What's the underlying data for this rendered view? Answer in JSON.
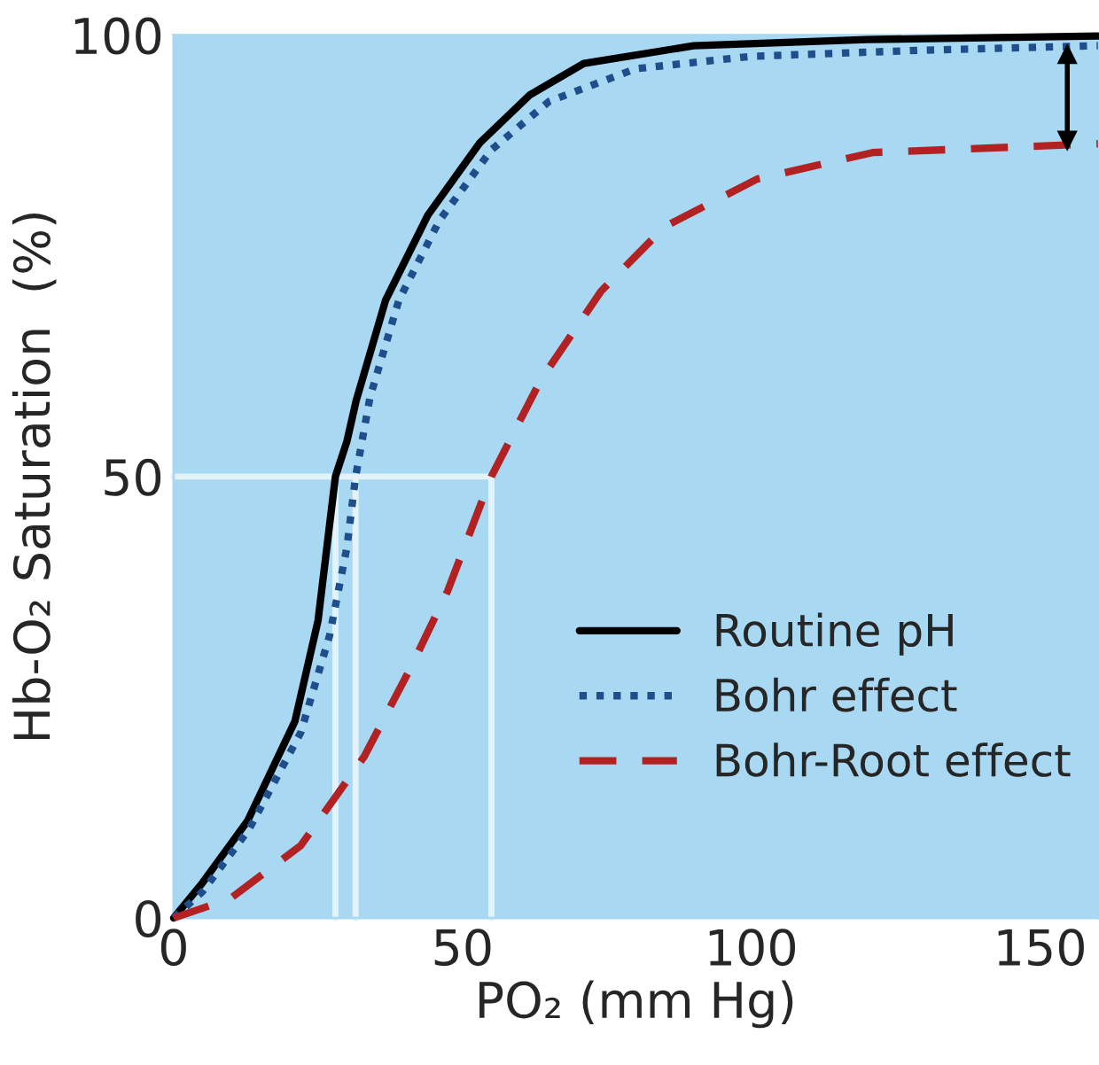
{
  "chart_data": {
    "type": "line",
    "xlabel": "PO₂ (mm Hg)",
    "ylabel": "Hb-O₂ Saturation  (%)",
    "xlim": [
      0,
      160
    ],
    "xticks": [
      0,
      50,
      100,
      150
    ],
    "ylim": [
      0,
      100
    ],
    "yticks": [
      0,
      50,
      100
    ],
    "grid": false,
    "legend": "bottom right",
    "series": [
      {
        "name": "Routine pH",
        "color": "#000000",
        "line_style": "solid",
        "x": [
          0,
          5,
          12.8,
          21,
          25,
          28,
          30,
          31.6,
          36.7,
          44,
          53,
          61.6,
          71,
          90,
          120,
          160
        ],
        "values": [
          0,
          4,
          11,
          22.3,
          33.7,
          50,
          54,
          58.6,
          70,
          79.6,
          87.8,
          93.2,
          96.8,
          98.8,
          99.5,
          99.9
        ]
      },
      {
        "name": "Bohr effect",
        "color": "#1f4e8c",
        "line_style": "dotted",
        "x": [
          0,
          5,
          13,
          22,
          27,
          30,
          31.5,
          34,
          39,
          46,
          55,
          65,
          80,
          100,
          130,
          160
        ],
        "values": [
          0,
          3,
          10,
          21,
          32,
          42,
          50,
          59,
          70,
          79,
          87,
          92.5,
          96.2,
          97.6,
          98.3,
          98.8
        ]
      },
      {
        "name": "Bohr-Root effect",
        "color": "#b22222",
        "line_style": "dashed",
        "x": [
          0,
          9.8,
          22,
          28,
          33,
          41,
          47.4,
          55,
          63.6,
          74,
          85,
          101,
          121,
          160
        ],
        "values": [
          0,
          2.2,
          8.2,
          13.7,
          18.3,
          28.3,
          37,
          50,
          61,
          71,
          78.3,
          83.7,
          86.7,
          87.7
        ]
      },
      {
        "color": "#e4f3fa",
        "line_style": "solid",
        "x": [
          0,
          55,
          55
        ],
        "values": [
          50,
          50,
          0
        ]
      },
      {
        "color": "#e4f3fa",
        "line_style": "solid",
        "x": [
          28,
          28
        ],
        "values": [
          50,
          0
        ]
      },
      {
        "color": "#e4f3fa",
        "line_style": "solid",
        "x": [
          31.5,
          31.5
        ],
        "values": [
          50,
          0
        ]
      },
      {
        "color": "#000000",
        "line_style": "solid",
        "marker": "triangle",
        "x": [
          154.7,
          154.7
        ],
        "values": [
          97.9,
          88
        ]
      }
    ]
  }
}
